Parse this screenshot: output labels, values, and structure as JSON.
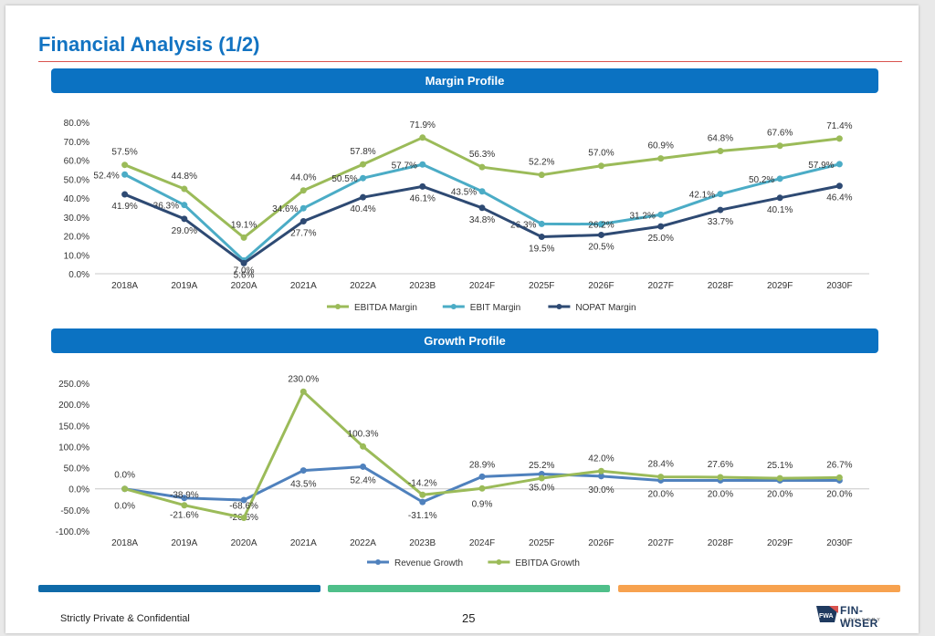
{
  "page": {
    "title": "Financial Analysis (1/2)",
    "footer": "Strictly Private & Confidential",
    "page_number": "25",
    "logo_text": "FIN-WISER",
    "logo_sub": "ADVISORY",
    "logo_mark": "FWA"
  },
  "colors": {
    "banner": "#0b72c2",
    "ebitda_margin": "#9bbb59",
    "ebit_margin": "#4bacc6",
    "nopat_margin": "#2e4a73",
    "revenue_growth": "#4f81bd",
    "ebitda_growth": "#9bbb59",
    "bar_blue": "#0f6aa8",
    "bar_green": "#4fbf8a",
    "bar_orange": "#f7a24f"
  },
  "chart_data": [
    {
      "type": "line",
      "title": "Margin Profile",
      "categories": [
        "2018A",
        "2019A",
        "2020A",
        "2021A",
        "2022A",
        "2023B",
        "2024F",
        "2025F",
        "2026F",
        "2027F",
        "2028F",
        "2029F",
        "2030F"
      ],
      "ylim": [
        0,
        80
      ],
      "yticks": [
        "0.0%",
        "10.0%",
        "20.0%",
        "30.0%",
        "40.0%",
        "50.0%",
        "60.0%",
        "70.0%",
        "80.0%"
      ],
      "grid": false,
      "legend": "bottom",
      "series": [
        {
          "name": "EBITDA Margin",
          "color": "#9bbb59",
          "values": [
            57.5,
            44.8,
            19.1,
            44.0,
            57.8,
            71.9,
            56.3,
            52.2,
            57.0,
            60.9,
            64.8,
            67.6,
            71.4
          ],
          "labels": [
            "57.5%",
            "44.8%",
            "19.1%",
            "44.0%",
            "57.8%",
            "71.9%",
            "56.3%",
            "52.2%",
            "57.0%",
            "60.9%",
            "64.8%",
            "67.6%",
            "71.4%"
          ]
        },
        {
          "name": "EBIT Margin",
          "color": "#4bacc6",
          "values": [
            52.4,
            36.3,
            7.0,
            34.6,
            50.5,
            57.7,
            43.5,
            26.3,
            26.2,
            31.2,
            42.1,
            50.2,
            57.9
          ],
          "labels": [
            "52.4%",
            "36.3%",
            "7.0%",
            "34.6%",
            "50.5%",
            "57.7%",
            "43.5%",
            "26.3%",
            "26.2%",
            "31.2%",
            "42.1%",
            "50.2%",
            "57.9%"
          ]
        },
        {
          "name": "NOPAT Margin",
          "color": "#2e4a73",
          "values": [
            41.9,
            29.0,
            5.6,
            27.7,
            40.4,
            46.1,
            34.8,
            19.5,
            20.5,
            25.0,
            33.7,
            40.1,
            46.4
          ],
          "labels": [
            "41.9%",
            "29.0%",
            "5.6%",
            "27.7%",
            "40.4%",
            "46.1%",
            "34.8%",
            "19.5%",
            "20.5%",
            "25.0%",
            "33.7%",
            "40.1%",
            "46.4%"
          ]
        }
      ]
    },
    {
      "type": "line",
      "title": "Growth Profile",
      "categories": [
        "2018A",
        "2019A",
        "2020A",
        "2021A",
        "2022A",
        "2023B",
        "2024F",
        "2025F",
        "2026F",
        "2027F",
        "2028F",
        "2029F",
        "2030F"
      ],
      "ylim": [
        -100,
        250
      ],
      "yticks": [
        "-100.0%",
        "-50.0%",
        "0.0%",
        "50.0%",
        "100.0%",
        "150.0%",
        "200.0%",
        "250.0%"
      ],
      "grid": false,
      "legend": "bottom",
      "series": [
        {
          "name": "Revenue Growth",
          "color": "#4f81bd",
          "values": [
            0.0,
            -21.6,
            -26.6,
            43.5,
            52.4,
            -31.1,
            28.9,
            35.0,
            30.0,
            20.0,
            20.0,
            20.0,
            20.0
          ],
          "labels": [
            "0.0%",
            "-21.6%",
            "-26.6%",
            "43.5%",
            "52.4%",
            "-31.1%",
            "28.9%",
            "35.0%",
            "30.0%",
            "20.0%",
            "20.0%",
            "20.0%",
            "20.0%"
          ]
        },
        {
          "name": "EBITDA Growth",
          "color": "#9bbb59",
          "values": [
            0.0,
            -38.9,
            -68.6,
            230.0,
            100.3,
            -14.2,
            0.9,
            25.2,
            42.0,
            28.4,
            27.6,
            25.1,
            26.7
          ],
          "labels": [
            "0.0%",
            "-38.9%",
            "-68.6%",
            "230.0%",
            "100.3%",
            "-14.2%",
            "0.9%",
            "25.2%",
            "42.0%",
            "28.4%",
            "27.6%",
            "25.1%",
            "26.7%"
          ]
        }
      ]
    }
  ]
}
